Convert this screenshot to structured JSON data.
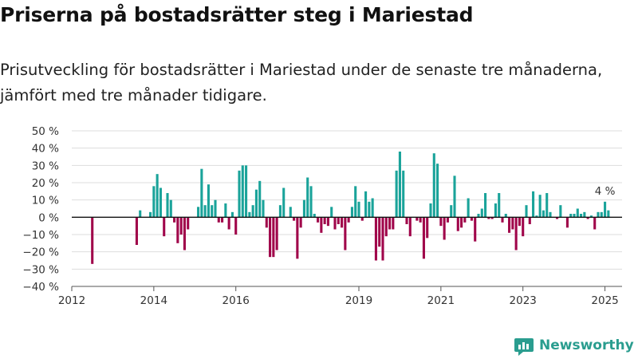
{
  "title": "Priserna på bostadsrätter steg i Mariestad",
  "subtitle": "Prisutveckling för bostadsrätter i Mariestad under de senaste tre månaderna, jämfört med tre månader tidigare.",
  "brand": {
    "name": "Newsworthy",
    "icon": "newsworthy-logo-icon"
  },
  "colors": {
    "positive": "#1aa39a",
    "negative": "#a0054a",
    "zero_line": "#111111",
    "grid": "#dddddd"
  },
  "chart_data": {
    "type": "bar",
    "ylim": [
      -40,
      50
    ],
    "yticks": [
      50,
      40,
      30,
      20,
      10,
      0,
      -10,
      -20,
      -30,
      -40
    ],
    "ytick_labels": [
      "50 %",
      "40 %",
      "30 %",
      "20 %",
      "10 %",
      "0 %",
      "−10 %",
      "−20 %",
      "−30 %",
      "−40 %"
    ],
    "xlim": [
      "2012-01",
      "2025-06"
    ],
    "xticks": [
      "2012-01",
      "2014-01",
      "2016-01",
      "2019-01",
      "2021-01",
      "2023-01",
      "2025-01"
    ],
    "xtick_labels": [
      "2012",
      "2014",
      "2016",
      "2019",
      "2021",
      "2023",
      "2025"
    ],
    "grid": true,
    "annotation": {
      "label": "4 %",
      "at": "2025-01"
    },
    "series": [
      {
        "values": [
          [
            "2012-07",
            -27
          ],
          [
            "2013-08",
            -16
          ],
          [
            "2013-09",
            4
          ],
          [
            "2013-12",
            3
          ],
          [
            "2014-01",
            18
          ],
          [
            "2014-02",
            25
          ],
          [
            "2014-03",
            17
          ],
          [
            "2014-04",
            -11
          ],
          [
            "2014-05",
            14
          ],
          [
            "2014-06",
            10
          ],
          [
            "2014-07",
            -3
          ],
          [
            "2014-08",
            -15
          ],
          [
            "2014-09",
            -10
          ],
          [
            "2014-10",
            -19
          ],
          [
            "2014-11",
            -7
          ],
          [
            "2015-02",
            6
          ],
          [
            "2015-03",
            28
          ],
          [
            "2015-04",
            7
          ],
          [
            "2015-05",
            19
          ],
          [
            "2015-06",
            7
          ],
          [
            "2015-07",
            10
          ],
          [
            "2015-08",
            -3
          ],
          [
            "2015-09",
            -3
          ],
          [
            "2015-10",
            8
          ],
          [
            "2015-11",
            -7
          ],
          [
            "2015-12",
            3
          ],
          [
            "2016-01",
            -10
          ],
          [
            "2016-02",
            27
          ],
          [
            "2016-03",
            30
          ],
          [
            "2016-04",
            30
          ],
          [
            "2016-05",
            3
          ],
          [
            "2016-06",
            7
          ],
          [
            "2016-07",
            16
          ],
          [
            "2016-08",
            21
          ],
          [
            "2016-09",
            10
          ],
          [
            "2016-10",
            -6
          ],
          [
            "2016-11",
            -23
          ],
          [
            "2016-12",
            -23
          ],
          [
            "2017-01",
            -19
          ],
          [
            "2017-02",
            7
          ],
          [
            "2017-03",
            17
          ],
          [
            "2017-05",
            6
          ],
          [
            "2017-06",
            -2
          ],
          [
            "2017-07",
            -24
          ],
          [
            "2017-08",
            -6
          ],
          [
            "2017-09",
            10
          ],
          [
            "2017-10",
            23
          ],
          [
            "2017-11",
            18
          ],
          [
            "2017-12",
            2
          ],
          [
            "2018-01",
            -3
          ],
          [
            "2018-02",
            -9
          ],
          [
            "2018-03",
            -4
          ],
          [
            "2018-04",
            -5
          ],
          [
            "2018-05",
            6
          ],
          [
            "2018-06",
            -7
          ],
          [
            "2018-07",
            -4
          ],
          [
            "2018-08",
            -6
          ],
          [
            "2018-09",
            -19
          ],
          [
            "2018-10",
            -3
          ],
          [
            "2018-11",
            6
          ],
          [
            "2018-12",
            18
          ],
          [
            "2019-01",
            9
          ],
          [
            "2019-02",
            -2
          ],
          [
            "2019-03",
            15
          ],
          [
            "2019-04",
            9
          ],
          [
            "2019-05",
            11
          ],
          [
            "2019-06",
            -25
          ],
          [
            "2019-07",
            -17
          ],
          [
            "2019-08",
            -25
          ],
          [
            "2019-09",
            -11
          ],
          [
            "2019-10",
            -7
          ],
          [
            "2019-11",
            -7
          ],
          [
            "2019-12",
            27
          ],
          [
            "2020-01",
            38
          ],
          [
            "2020-02",
            27
          ],
          [
            "2020-03",
            -4
          ],
          [
            "2020-04",
            -11
          ],
          [
            "2020-06",
            -2
          ],
          [
            "2020-07",
            -3
          ],
          [
            "2020-08",
            -24
          ],
          [
            "2020-09",
            -12
          ],
          [
            "2020-10",
            8
          ],
          [
            "2020-11",
            37
          ],
          [
            "2020-12",
            31
          ],
          [
            "2021-01",
            -5
          ],
          [
            "2021-02",
            -13
          ],
          [
            "2021-03",
            -3
          ],
          [
            "2021-04",
            7
          ],
          [
            "2021-05",
            24
          ],
          [
            "2021-06",
            -8
          ],
          [
            "2021-07",
            -6
          ],
          [
            "2021-08",
            -3
          ],
          [
            "2021-09",
            11
          ],
          [
            "2021-10",
            -2
          ],
          [
            "2021-11",
            -14
          ],
          [
            "2021-12",
            2
          ],
          [
            "2022-01",
            5
          ],
          [
            "2022-02",
            14
          ],
          [
            "2022-03",
            -1
          ],
          [
            "2022-04",
            -1
          ],
          [
            "2022-05",
            8
          ],
          [
            "2022-06",
            14
          ],
          [
            "2022-07",
            -3
          ],
          [
            "2022-08",
            2
          ],
          [
            "2022-09",
            -9
          ],
          [
            "2022-10",
            -7
          ],
          [
            "2022-11",
            -19
          ],
          [
            "2022-12",
            -5
          ],
          [
            "2023-01",
            -11
          ],
          [
            "2023-02",
            7
          ],
          [
            "2023-03",
            -4
          ],
          [
            "2023-04",
            15
          ],
          [
            "2023-05",
            1
          ],
          [
            "2023-06",
            13
          ],
          [
            "2023-07",
            4
          ],
          [
            "2023-08",
            14
          ],
          [
            "2023-09",
            3
          ],
          [
            "2023-11",
            -1
          ],
          [
            "2023-12",
            7
          ],
          [
            "2024-02",
            -6
          ],
          [
            "2024-03",
            2
          ],
          [
            "2024-04",
            2
          ],
          [
            "2024-05",
            5
          ],
          [
            "2024-06",
            2
          ],
          [
            "2024-07",
            3
          ],
          [
            "2024-08",
            -1
          ],
          [
            "2024-09",
            1
          ],
          [
            "2024-10",
            -7
          ],
          [
            "2024-11",
            3
          ],
          [
            "2024-12",
            3
          ],
          [
            "2025-01",
            9
          ],
          [
            "2025-02",
            4
          ]
        ]
      }
    ]
  }
}
